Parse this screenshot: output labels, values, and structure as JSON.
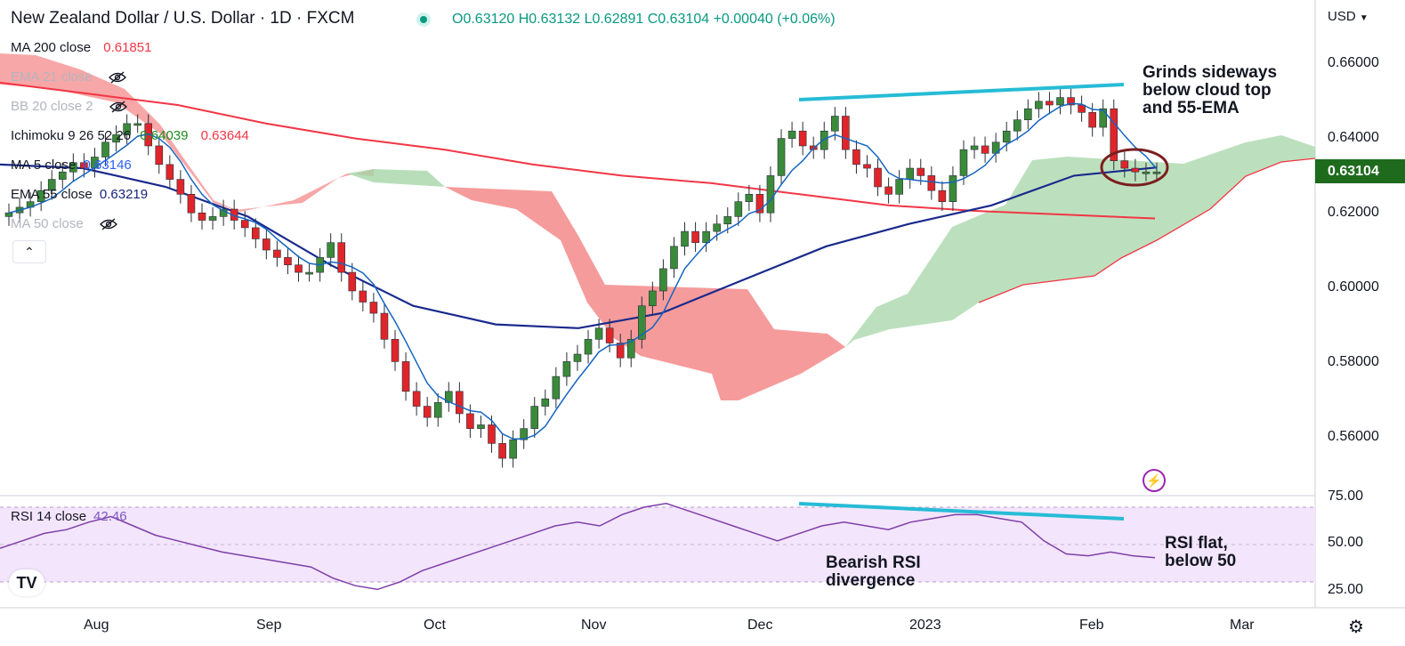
{
  "header": {
    "title": "New Zealand Dollar / U.S. Dollar · 1D · FXCM",
    "ohlc": "O0.63120 H0.63132 L0.62891 C0.63104 +0.00040 (+0.06%)"
  },
  "indicators": [
    {
      "name": "MA 200 close",
      "value": "0.61851",
      "color": "#f23645",
      "hidden": false
    },
    {
      "name": "EMA 21 close",
      "value": "",
      "hidden": true
    },
    {
      "name": "BB 20 close 2",
      "value": "",
      "hidden": true
    },
    {
      "name": "Ichimoku 9 26 52 26",
      "value": "0.64039",
      "value2": "0.63644",
      "color": "#1e8c1e",
      "color2": "#f23645",
      "hidden": false
    },
    {
      "name": "MA 5 close",
      "value": "0.63146",
      "color": "#2962ff",
      "hidden": false
    },
    {
      "name": "EMA 55 close",
      "value": "0.63219",
      "color": "#1a237e",
      "hidden": false
    },
    {
      "name": "MA 50 close",
      "value": "",
      "hidden": true
    }
  ],
  "price_axis": {
    "currency": "USD",
    "ticks": [
      "0.66000",
      "0.64000",
      "0.62000",
      "0.60000",
      "0.58000",
      "0.56000"
    ],
    "last_price": "0.63104"
  },
  "rsi": {
    "label": "RSI 14 close",
    "value": "42.46",
    "ticks": [
      "75.00",
      "50.00",
      "25.00"
    ]
  },
  "time_axis": [
    "Aug",
    "Sep",
    "Oct",
    "Nov",
    "Dec",
    "2023",
    "Feb",
    "Mar"
  ],
  "annotations": {
    "top_right": [
      "Grinds sideways",
      "below cloud top",
      "and 55-EMA"
    ],
    "rsi_div": [
      "Bearish RSI",
      "divergence"
    ],
    "rsi_flat": [
      "RSI flat,",
      "below 50"
    ]
  },
  "icons": [
    "eye-off-icon",
    "chevron-up-icon",
    "lightning-icon",
    "tradingview-logo-icon",
    "gear-icon"
  ],
  "colors": {
    "up": "#3a8a3a",
    "down": "#e0252a",
    "ma200": "#f23645",
    "ema55": "#1a2a8c",
    "ma5": "#1565c0",
    "cloud_bull": "#a5d6a7",
    "cloud_bear": "#f48a8a",
    "trendline": "#26bcd6",
    "rsi": "#7e3fa8"
  },
  "chart_data": {
    "type": "candlestick",
    "symbol": "NZDUSD",
    "interval": "1D",
    "ylim": [
      0.548,
      0.667
    ],
    "series": [
      {
        "name": "Price (approx daily close)",
        "values": [
          0.62,
          0.6215,
          0.623,
          0.626,
          0.629,
          0.631,
          0.6335,
          0.632,
          0.635,
          0.639,
          0.641,
          0.644,
          0.644,
          0.638,
          0.633,
          0.629,
          0.625,
          0.62,
          0.618,
          0.619,
          0.621,
          0.618,
          0.616,
          0.613,
          0.61,
          0.608,
          0.606,
          0.604,
          0.604,
          0.608,
          0.612,
          0.604,
          0.599,
          0.596,
          0.593,
          0.586,
          0.58,
          0.572,
          0.568,
          0.565,
          0.569,
          0.572,
          0.566,
          0.562,
          0.563,
          0.558,
          0.554,
          0.559,
          0.562,
          0.568,
          0.57,
          0.576,
          0.58,
          0.582,
          0.586,
          0.589,
          0.585,
          0.581,
          0.586,
          0.595,
          0.599,
          0.605,
          0.611,
          0.615,
          0.612,
          0.615,
          0.617,
          0.619,
          0.623,
          0.625,
          0.62,
          0.63,
          0.64,
          0.642,
          0.638,
          0.637,
          0.642,
          0.646,
          0.637,
          0.633,
          0.632,
          0.627,
          0.625,
          0.629,
          0.632,
          0.63,
          0.626,
          0.623,
          0.63,
          0.637,
          0.638,
          0.636,
          0.639,
          0.642,
          0.645,
          0.648,
          0.65,
          0.649,
          0.651,
          0.649,
          0.647,
          0.643,
          0.648,
          0.634,
          0.632,
          0.631,
          0.631,
          0.631
        ]
      },
      {
        "name": "MA 200 close",
        "values": [
          0.655,
          0.652,
          0.649,
          0.644,
          0.64,
          0.637,
          0.633,
          0.63,
          0.628,
          0.625,
          0.622,
          0.6205,
          0.6195,
          0.6185
        ]
      },
      {
        "name": "EMA 55 close",
        "values": [
          0.633,
          0.632,
          0.627,
          0.619,
          0.606,
          0.595,
          0.59,
          0.589,
          0.593,
          0.602,
          0.611,
          0.617,
          0.622,
          0.63,
          0.6322
        ]
      }
    ],
    "rsi_values": [
      48,
      52,
      56,
      58,
      62,
      65,
      60,
      55,
      52,
      49,
      46,
      44,
      42,
      40,
      38,
      32,
      28,
      26,
      30,
      36,
      40,
      44,
      48,
      52,
      56,
      60,
      62,
      60,
      66,
      70,
      72,
      68,
      64,
      60,
      56,
      52,
      56,
      60,
      62,
      60,
      58,
      62,
      64,
      66,
      66,
      64,
      62,
      52,
      45,
      44,
      46,
      44,
      43
    ]
  }
}
